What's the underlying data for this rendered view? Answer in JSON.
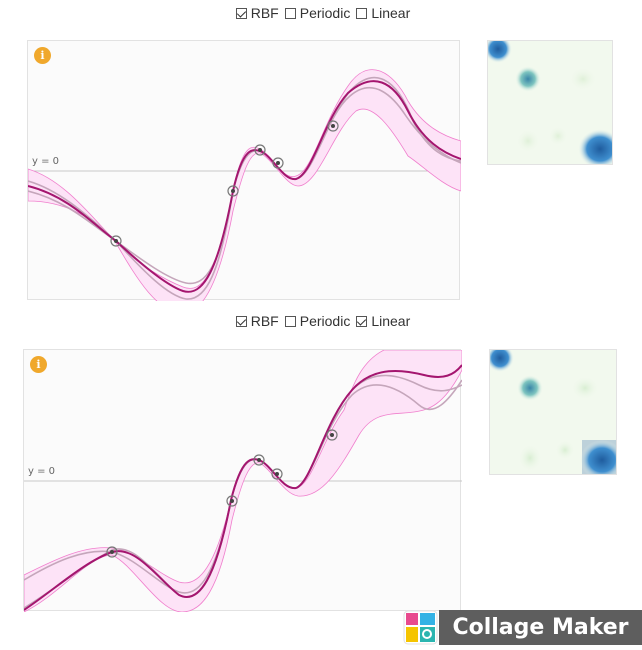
{
  "panels": [
    {
      "kernels": [
        {
          "label": "RBF",
          "checked": true
        },
        {
          "label": "Periodic",
          "checked": false
        },
        {
          "label": "Linear",
          "checked": false
        }
      ],
      "info_icon": "i",
      "y0_label": "y = 0"
    },
    {
      "kernels": [
        {
          "label": "RBF",
          "checked": true
        },
        {
          "label": "Periodic",
          "checked": false
        },
        {
          "label": "Linear",
          "checked": true
        }
      ],
      "info_icon": "i",
      "y0_label": "y = 0"
    }
  ],
  "watermark": {
    "text": "Collage Maker",
    "icon": "camera-app-icon"
  },
  "colors": {
    "mean": "#a4166f",
    "band_fill": "#fde3f7",
    "band_edge": "#f07fcd",
    "sample": "#c5a6bb",
    "info": "#f0a82c",
    "matrix_bg": "#f2f9ee",
    "matrix_dark": "#1f5c9e"
  }
}
